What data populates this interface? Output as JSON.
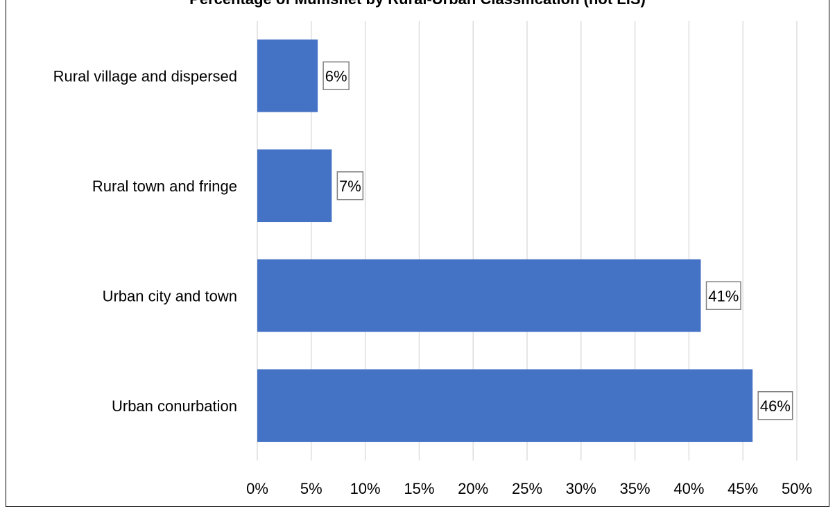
{
  "chart_data": {
    "type": "bar",
    "orientation": "horizontal",
    "title": "Percentage of Mumsnet by Rural-Urban Classification (not LIS)",
    "categories": [
      "Rural village and dispersed",
      "Rural town and fringe",
      "Urban city and town",
      "Urban conurbation"
    ],
    "values": [
      5.6,
      6.9,
      41.1,
      45.9
    ],
    "data_labels": [
      "6%",
      "7%",
      "41%",
      "46%"
    ],
    "xlim": [
      0,
      50
    ],
    "x_ticks": [
      "0%",
      "5%",
      "10%",
      "15%",
      "20%",
      "25%",
      "30%",
      "35%",
      "40%",
      "45%",
      "50%"
    ],
    "xlabel": "",
    "ylabel": "",
    "grid": "vertical",
    "legend": "none",
    "colors": {
      "bar": "#4472C4",
      "grid": "#D9D9D9",
      "label_border": "#7F7F7F"
    }
  }
}
